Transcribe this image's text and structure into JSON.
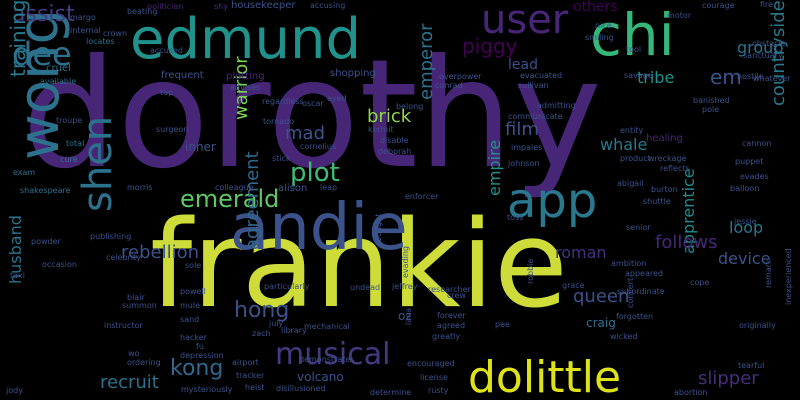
{
  "words": [
    {
      "text": "dorothy",
      "size": 150,
      "color": "#482677"
    },
    {
      "text": "frankie",
      "size": 120,
      "color": "#cddc39"
    },
    {
      "text": "andie",
      "size": 64,
      "color": "#3b528b"
    },
    {
      "text": "edmund",
      "size": 56,
      "color": "#21918c"
    },
    {
      "text": "chi",
      "size": 58,
      "color": "#35b779"
    },
    {
      "text": "wong",
      "size": 56,
      "color": "#2c728e"
    },
    {
      "text": "dolittle",
      "size": 44,
      "color": "#dde318"
    },
    {
      "text": "app",
      "size": 48,
      "color": "#2a788e"
    },
    {
      "text": "shen",
      "size": 40,
      "color": "#2c728e"
    },
    {
      "text": "user",
      "size": 40,
      "color": "#482677"
    },
    {
      "text": "dee",
      "size": 32,
      "color": "#2c728e"
    },
    {
      "text": "musical",
      "size": 30,
      "color": "#443a83"
    },
    {
      "text": "plot",
      "size": 26,
      "color": "#3dbc74"
    },
    {
      "text": "emerald",
      "size": 24,
      "color": "#5ec962"
    },
    {
      "text": "hong",
      "size": 22,
      "color": "#3b528b"
    },
    {
      "text": "kong",
      "size": 22,
      "color": "#31688e"
    },
    {
      "text": "assist",
      "size": 22,
      "color": "#443a83"
    },
    {
      "text": "brick",
      "size": 18,
      "color": "#8fd744"
    },
    {
      "text": "training",
      "size": 20,
      "color": "#2a788e"
    },
    {
      "text": "warrior",
      "size": 18,
      "color": "#7ad151"
    },
    {
      "text": "emperor",
      "size": 18,
      "color": "#2c728e"
    },
    {
      "text": "countryside",
      "size": 18,
      "color": "#2a788e"
    },
    {
      "text": "empire",
      "size": 16,
      "color": "#21918c"
    },
    {
      "text": "husband",
      "size": 16,
      "color": "#2c728e"
    },
    {
      "text": "recruit",
      "size": 18,
      "color": "#2c728e"
    },
    {
      "text": "slipper",
      "size": 18,
      "color": "#472d7b"
    },
    {
      "text": "agreement",
      "size": 18,
      "color": "#31688e"
    },
    {
      "text": "apprentice",
      "size": 16,
      "color": "#238a8d"
    },
    {
      "text": "queen",
      "size": 18,
      "color": "#3b528b"
    },
    {
      "text": "follows",
      "size": 18,
      "color": "#482677"
    },
    {
      "text": "rebellion",
      "size": 18,
      "color": "#3b528b"
    },
    {
      "text": "piggy",
      "size": 20,
      "color": "#440154"
    },
    {
      "text": "tribe",
      "size": 16,
      "color": "#21918c"
    },
    {
      "text": "group",
      "size": 16,
      "color": "#2c728e"
    },
    {
      "text": "film",
      "size": 18,
      "color": "#3b528b"
    },
    {
      "text": "whale",
      "size": 16,
      "color": "#2a788e"
    },
    {
      "text": "loop",
      "size": 16,
      "color": "#2a788e"
    },
    {
      "text": "device",
      "size": 16,
      "color": "#3b528b"
    },
    {
      "text": "roman",
      "size": 16,
      "color": "#46327e"
    },
    {
      "text": "em",
      "size": 20,
      "color": "#3b528b"
    },
    {
      "text": "mad",
      "size": 18,
      "color": "#3b528b"
    },
    {
      "text": "lead",
      "size": 14,
      "color": "#3b528b"
    },
    {
      "text": "others",
      "size": 14,
      "color": "#440154"
    },
    {
      "text": "inner",
      "size": 12,
      "color": "#3b528b"
    },
    {
      "text": "volcano",
      "size": 12,
      "color": "#3b528b"
    },
    {
      "text": "oz",
      "size": 12,
      "color": "#3b528b"
    },
    {
      "text": "craig",
      "size": 12,
      "color": "#2c728e"
    },
    {
      "text": "housekeeper",
      "size": 10,
      "color": "#3b528b"
    },
    {
      "text": "shopping",
      "size": 10,
      "color": "#3b528b"
    },
    {
      "text": "frequent",
      "size": 10,
      "color": "#3b528b"
    },
    {
      "text": "politician",
      "size": 8,
      "color": "#482677"
    },
    {
      "text": "accusing",
      "size": 8,
      "color": "#3b528b"
    },
    {
      "text": "shy",
      "size": 8,
      "color": "#472d7b"
    },
    {
      "text": "beating",
      "size": 8,
      "color": "#3b528b"
    },
    {
      "text": "margo",
      "size": 8,
      "color": "#3b528b"
    },
    {
      "text": "crown",
      "size": 8,
      "color": "#3b528b"
    },
    {
      "text": "internal",
      "size": 8,
      "color": "#3b528b"
    },
    {
      "text": "locates",
      "size": 8,
      "color": "#2c728e"
    },
    {
      "text": "cruel",
      "size": 10,
      "color": "#2c728e"
    },
    {
      "text": "available",
      "size": 8,
      "color": "#2c728e"
    },
    {
      "text": "accused",
      "size": 8,
      "color": "#3b528b"
    },
    {
      "text": "plotting",
      "size": 10,
      "color": "#482677"
    },
    {
      "text": "tap",
      "size": 8,
      "color": "#3b528b"
    },
    {
      "text": "advises",
      "size": 8,
      "color": "#3b528b"
    },
    {
      "text": "regardless",
      "size": 8,
      "color": "#3b528b"
    },
    {
      "text": "tornado",
      "size": 8,
      "color": "#3b528b"
    },
    {
      "text": "oscar",
      "size": 8,
      "color": "#3b528b"
    },
    {
      "text": "eyed",
      "size": 8,
      "color": "#3b528b"
    },
    {
      "text": "kermit",
      "size": 8,
      "color": "#3b528b"
    },
    {
      "text": "cornelius",
      "size": 8,
      "color": "#3b528b"
    },
    {
      "text": "surgeon",
      "size": 8,
      "color": "#3b528b"
    },
    {
      "text": "troupe",
      "size": 8,
      "color": "#3b528b"
    },
    {
      "text": "total",
      "size": 8,
      "color": "#2c728e"
    },
    {
      "text": "cure",
      "size": 8,
      "color": "#2c728e"
    },
    {
      "text": "exam",
      "size": 8,
      "color": "#2c728e"
    },
    {
      "text": "shakespeare",
      "size": 8,
      "color": "#2c728e"
    },
    {
      "text": "morris",
      "size": 8,
      "color": "#3b528b"
    },
    {
      "text": "colleague",
      "size": 8,
      "color": "#3b528b"
    },
    {
      "text": "alison",
      "size": 10,
      "color": "#3b528b"
    },
    {
      "text": "stick",
      "size": 8,
      "color": "#3b528b"
    },
    {
      "text": "leap",
      "size": 8,
      "color": "#3b528b"
    },
    {
      "text": "disable",
      "size": 8,
      "color": "#3b528b"
    },
    {
      "text": "deborah",
      "size": 8,
      "color": "#3b528b"
    },
    {
      "text": "communicate",
      "size": 8,
      "color": "#3b528b"
    },
    {
      "text": "impales",
      "size": 8,
      "color": "#3b528b"
    },
    {
      "text": "johnson",
      "size": 8,
      "color": "#3b528b"
    },
    {
      "text": "admitting",
      "size": 8,
      "color": "#3b528b"
    },
    {
      "text": "evacuated",
      "size": 8,
      "color": "#3b528b"
    },
    {
      "text": "sullivan",
      "size": 8,
      "color": "#3b528b"
    },
    {
      "text": "overpower",
      "size": 8,
      "color": "#3b528b"
    },
    {
      "text": "conrad",
      "size": 8,
      "color": "#3b528b"
    },
    {
      "text": "belong",
      "size": 8,
      "color": "#3b528b"
    },
    {
      "text": "nice",
      "size": 8,
      "color": "#3b528b"
    },
    {
      "text": "smiling",
      "size": 8,
      "color": "#3b528b"
    },
    {
      "text": "tool",
      "size": 8,
      "color": "#3b528b"
    },
    {
      "text": "savage",
      "size": 8,
      "color": "#3b528b"
    },
    {
      "text": "motor",
      "size": 8,
      "color": "#3b528b"
    },
    {
      "text": "courage",
      "size": 8,
      "color": "#3b528b"
    },
    {
      "text": "fire",
      "size": 8,
      "color": "#3b528b"
    },
    {
      "text": "hostile",
      "size": 8,
      "color": "#3b528b"
    },
    {
      "text": "obstacle",
      "size": 8,
      "color": "#3b528b"
    },
    {
      "text": "sanctuary",
      "size": 8,
      "color": "#3b528b"
    },
    {
      "text": "whatever",
      "size": 8,
      "color": "#3b528b"
    },
    {
      "text": "banished",
      "size": 8,
      "color": "#3b528b"
    },
    {
      "text": "pole",
      "size": 8,
      "color": "#3b528b"
    },
    {
      "text": "healing",
      "size": 10,
      "color": "#482677"
    },
    {
      "text": "entity",
      "size": 8,
      "color": "#3b528b"
    },
    {
      "text": "product",
      "size": 8,
      "color": "#3b528b"
    },
    {
      "text": "wreckage",
      "size": 8,
      "color": "#3b528b"
    },
    {
      "text": "reflects",
      "size": 8,
      "color": "#3b528b"
    },
    {
      "text": "cannon",
      "size": 8,
      "color": "#3b528b"
    },
    {
      "text": "puppet",
      "size": 8,
      "color": "#3b528b"
    },
    {
      "text": "evades",
      "size": 8,
      "color": "#3b528b"
    },
    {
      "text": "balloon",
      "size": 8,
      "color": "#3b528b"
    },
    {
      "text": "abigail",
      "size": 8,
      "color": "#3b528b"
    },
    {
      "text": "burton",
      "size": 8,
      "color": "#3b528b"
    },
    {
      "text": "shuttle",
      "size": 8,
      "color": "#3b528b"
    },
    {
      "text": "jessie",
      "size": 8,
      "color": "#3b528b"
    },
    {
      "text": "enforcer",
      "size": 8,
      "color": "#3b528b"
    },
    {
      "text": "toss",
      "size": 8,
      "color": "#3b528b"
    },
    {
      "text": "senior",
      "size": 8,
      "color": "#3b528b"
    },
    {
      "text": "ambition",
      "size": 8,
      "color": "#3b528b"
    },
    {
      "text": "appeared",
      "size": 8,
      "color": "#3b528b"
    },
    {
      "text": "cope",
      "size": 8,
      "color": "#3b528b"
    },
    {
      "text": "remark",
      "size": 8,
      "color": "#3b528b"
    },
    {
      "text": "inexperienced",
      "size": 8,
      "color": "#3b528b"
    },
    {
      "text": "originally",
      "size": 8,
      "color": "#3b528b"
    },
    {
      "text": "tearful",
      "size": 8,
      "color": "#3b528b"
    },
    {
      "text": "abortion",
      "size": 8,
      "color": "#3b528b"
    },
    {
      "text": "concert",
      "size": 8,
      "color": "#3b528b"
    },
    {
      "text": "wicked",
      "size": 8,
      "color": "#3b528b"
    },
    {
      "text": "subordinate",
      "size": 8,
      "color": "#3b528b"
    },
    {
      "text": "forgotten",
      "size": 8,
      "color": "#3b528b"
    },
    {
      "text": "robbie",
      "size": 8,
      "color": "#3b528b"
    },
    {
      "text": "grace",
      "size": 8,
      "color": "#3b528b"
    },
    {
      "text": "forever",
      "size": 8,
      "color": "#3b528b"
    },
    {
      "text": "agreed",
      "size": 8,
      "color": "#3b528b"
    },
    {
      "text": "greatly",
      "size": 8,
      "color": "#3b528b"
    },
    {
      "text": "pee",
      "size": 8,
      "color": "#3b528b"
    },
    {
      "text": "crew",
      "size": 8,
      "color": "#3b528b"
    },
    {
      "text": "encouraged",
      "size": 8,
      "color": "#3b528b"
    },
    {
      "text": "license",
      "size": 8,
      "color": "#3b528b"
    },
    {
      "text": "rusty",
      "size": 8,
      "color": "#3b528b"
    },
    {
      "text": "determine",
      "size": 8,
      "color": "#3b528b"
    },
    {
      "text": "lana",
      "size": 8,
      "color": "#3b528b"
    },
    {
      "text": "undead",
      "size": 8,
      "color": "#3b528b"
    },
    {
      "text": "jeffrey",
      "size": 8,
      "color": "#3b528b"
    },
    {
      "text": "researcher",
      "size": 8,
      "color": "#3b528b"
    },
    {
      "text": "bought",
      "size": 8,
      "color": "#3b528b"
    },
    {
      "text": "evading",
      "size": 8,
      "color": "#3b528b"
    },
    {
      "text": "particularly",
      "size": 8,
      "color": "#3b528b"
    },
    {
      "text": "july",
      "size": 8,
      "color": "#3b528b"
    },
    {
      "text": "mechanical",
      "size": 8,
      "color": "#3b528b"
    },
    {
      "text": "library",
      "size": 8,
      "color": "#3b528b"
    },
    {
      "text": "zach",
      "size": 8,
      "color": "#3b528b"
    },
    {
      "text": "demonstrates",
      "size": 8,
      "color": "#3b528b"
    },
    {
      "text": "airport",
      "size": 8,
      "color": "#3b528b"
    },
    {
      "text": "depression",
      "size": 8,
      "color": "#3b528b"
    },
    {
      "text": "tracker",
      "size": 8,
      "color": "#3b528b"
    },
    {
      "text": "heist",
      "size": 8,
      "color": "#3b528b"
    },
    {
      "text": "disillusioned",
      "size": 8,
      "color": "#3b528b"
    },
    {
      "text": "mysteriously",
      "size": 8,
      "color": "#3b528b"
    },
    {
      "text": "hacker",
      "size": 8,
      "color": "#3b528b"
    },
    {
      "text": "fu",
      "size": 8,
      "color": "#3b528b"
    },
    {
      "text": "wo",
      "size": 8,
      "color": "#3b528b"
    },
    {
      "text": "ordering",
      "size": 8,
      "color": "#3b528b"
    },
    {
      "text": "instructor",
      "size": 8,
      "color": "#3b528b"
    },
    {
      "text": "summon",
      "size": 8,
      "color": "#3b528b"
    },
    {
      "text": "blair",
      "size": 8,
      "color": "#3b528b"
    },
    {
      "text": "mule",
      "size": 8,
      "color": "#3b528b"
    },
    {
      "text": "powell",
      "size": 8,
      "color": "#3b528b"
    },
    {
      "text": "sole",
      "size": 8,
      "color": "#3b528b"
    },
    {
      "text": "sand",
      "size": 8,
      "color": "#3b528b"
    },
    {
      "text": "celebrity",
      "size": 8,
      "color": "#3b528b"
    },
    {
      "text": "publishing",
      "size": 8,
      "color": "#3b528b"
    },
    {
      "text": "powder",
      "size": 8,
      "color": "#3b528b"
    },
    {
      "text": "taxi",
      "size": 8,
      "color": "#3b528b"
    },
    {
      "text": "occasion",
      "size": 8,
      "color": "#3b528b"
    },
    {
      "text": "jody",
      "size": 8,
      "color": "#3b528b"
    }
  ]
}
